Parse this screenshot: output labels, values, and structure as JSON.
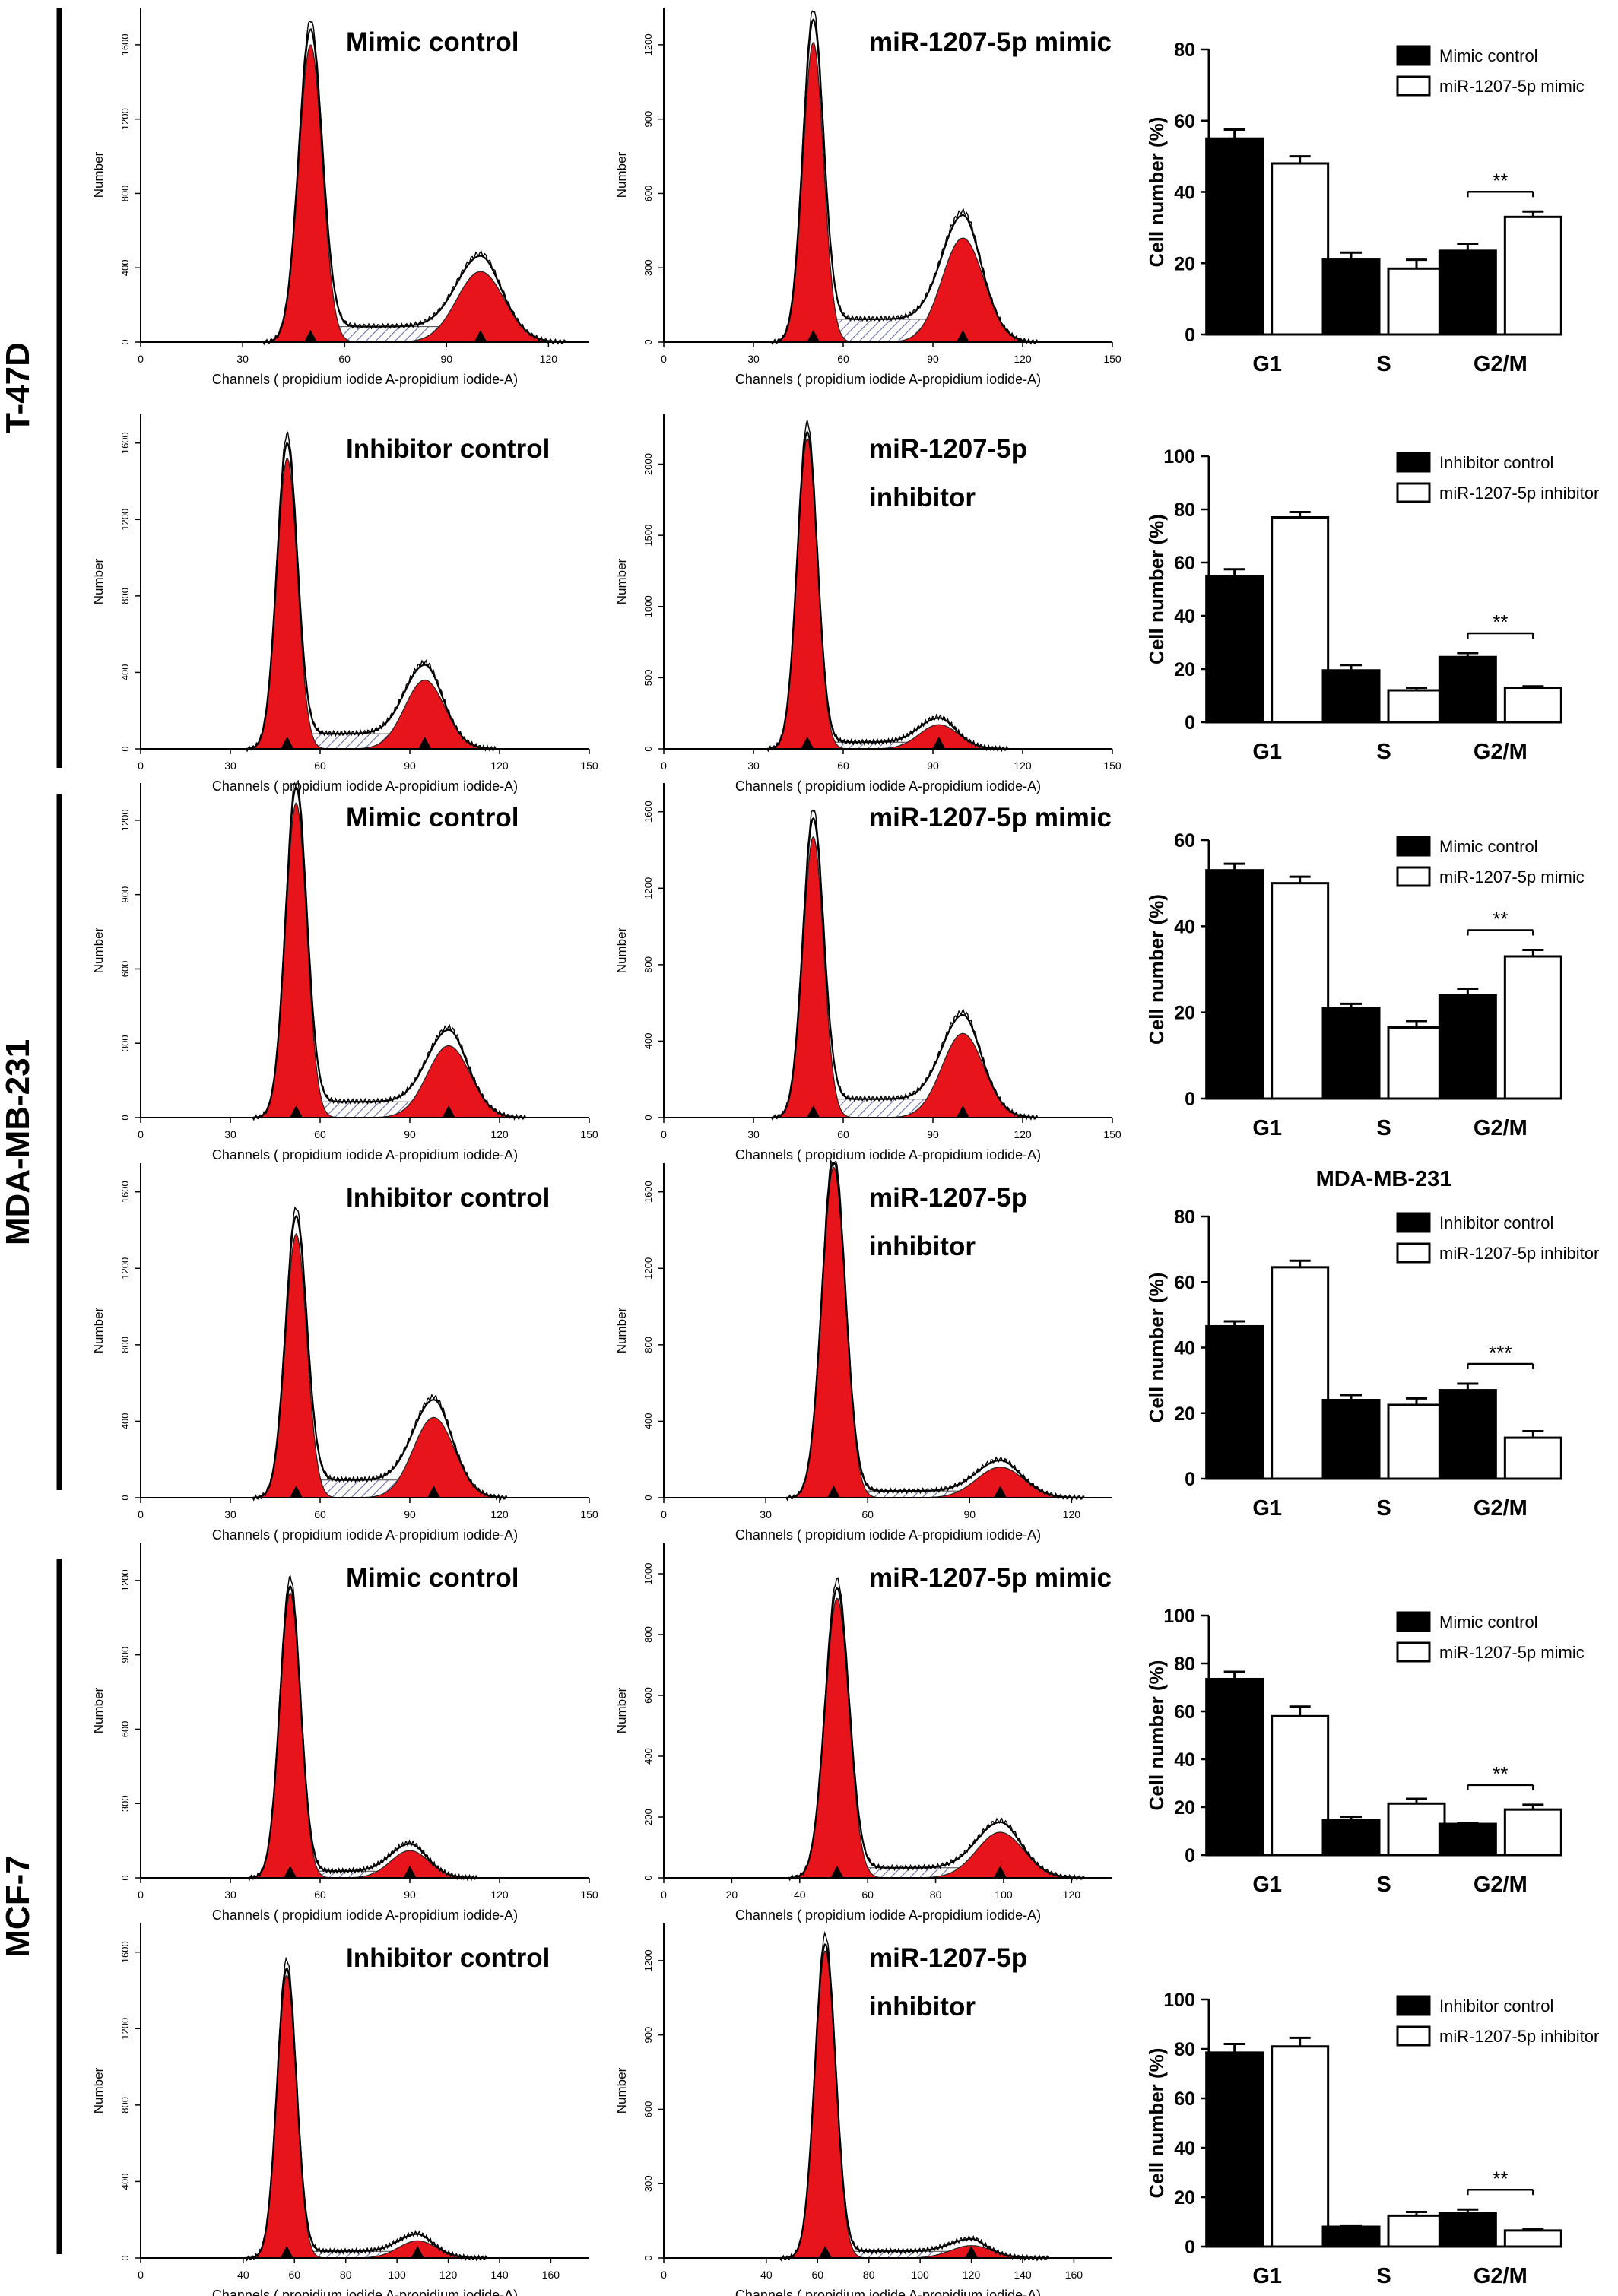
{
  "figure": {
    "cell_lines": [
      "T-47D",
      "MDA-MB-231",
      "MCF-7"
    ]
  },
  "histogram_text": {
    "ylabel": "Number",
    "xlabel": "Channels ( propidium iodide A-propidium iodide-A)"
  },
  "colors": {
    "peak_fill": "#e8141b",
    "hatch": "#6c6ca8",
    "control_bar": "#000000",
    "treatment_bar": "#ffffff"
  },
  "chart_data": [
    {
      "type": "area",
      "cell_line": "T-47D",
      "title": "Mimic control",
      "xticks": [
        0,
        30,
        60,
        90,
        120
      ],
      "xlim": [
        0,
        132
      ],
      "yticks": [
        0,
        400,
        800,
        1200,
        1600
      ],
      "ylim": [
        0,
        1800
      ],
      "g1_channel": 50,
      "g2_channel": 100,
      "g1_height": 1600,
      "g2_height": 380
    },
    {
      "type": "area",
      "cell_line": "T-47D",
      "title": "miR-1207-5p mimic",
      "xticks": [
        0,
        30,
        60,
        90,
        120,
        150
      ],
      "xlim": [
        0,
        150
      ],
      "yticks": [
        0,
        300,
        600,
        900,
        1200
      ],
      "ylim": [
        0,
        1350
      ],
      "g1_channel": 50,
      "g2_channel": 100,
      "g1_height": 1210,
      "g2_height": 420
    },
    {
      "type": "area",
      "cell_line": "T-47D",
      "title": "Inhibitor control",
      "xticks": [
        0,
        30,
        60,
        90,
        120,
        150
      ],
      "xlim": [
        0,
        150
      ],
      "yticks": [
        0,
        400,
        800,
        1200,
        1600
      ],
      "ylim": [
        0,
        1750
      ],
      "g1_channel": 49,
      "g2_channel": 95,
      "g1_height": 1520,
      "g2_height": 360
    },
    {
      "type": "area",
      "cell_line": "T-47D",
      "title": "miR-1207-5p inhibitor",
      "xticks": [
        0,
        30,
        60,
        90,
        120,
        150
      ],
      "xlim": [
        0,
        150
      ],
      "yticks": [
        0,
        500,
        1000,
        1500,
        2000
      ],
      "ylim": [
        0,
        2350
      ],
      "g1_channel": 48,
      "g2_channel": 92,
      "g1_height": 2180,
      "g2_height": 170
    },
    {
      "type": "area",
      "cell_line": "MDA-MB-231",
      "title": "Mimic control",
      "xticks": [
        0,
        30,
        60,
        90,
        120,
        150
      ],
      "xlim": [
        0,
        150
      ],
      "yticks": [
        0,
        300,
        600,
        900,
        1200
      ],
      "ylim": [
        0,
        1350
      ],
      "g1_channel": 52,
      "g2_channel": 103,
      "g1_height": 1270,
      "g2_height": 290
    },
    {
      "type": "area",
      "cell_line": "MDA-MB-231",
      "title": "miR-1207-5p mimic",
      "xticks": [
        0,
        30,
        60,
        90,
        120,
        150
      ],
      "xlim": [
        0,
        150
      ],
      "yticks": [
        0,
        400,
        800,
        1200,
        1600
      ],
      "ylim": [
        0,
        1750
      ],
      "g1_channel": 50,
      "g2_channel": 100,
      "g1_height": 1470,
      "g2_height": 440
    },
    {
      "type": "area",
      "cell_line": "MDA-MB-231",
      "title": "Inhibitor control",
      "xticks": [
        0,
        30,
        60,
        90,
        120,
        150
      ],
      "xlim": [
        0,
        150
      ],
      "yticks": [
        0,
        400,
        800,
        1200,
        1600
      ],
      "ylim": [
        0,
        1750
      ],
      "g1_channel": 52,
      "g2_channel": 98,
      "g1_height": 1380,
      "g2_height": 420
    },
    {
      "type": "area",
      "cell_line": "MDA-MB-231",
      "title": "miR-1207-5p inhibitor",
      "xticks": [
        0,
        30,
        60,
        90,
        120
      ],
      "xlim": [
        0,
        132
      ],
      "yticks": [
        0,
        400,
        800,
        1200,
        1600
      ],
      "ylim": [
        0,
        1750
      ],
      "g1_channel": 50,
      "g2_channel": 99,
      "g1_height": 1730,
      "g2_height": 160
    },
    {
      "type": "area",
      "cell_line": "MCF-7",
      "title": "Mimic control",
      "xticks": [
        0,
        30,
        60,
        90,
        120,
        150
      ],
      "xlim": [
        0,
        150
      ],
      "yticks": [
        0,
        300,
        600,
        900,
        1200
      ],
      "ylim": [
        0,
        1350
      ],
      "g1_channel": 50,
      "g2_channel": 90,
      "g1_height": 1150,
      "g2_height": 110
    },
    {
      "type": "area",
      "cell_line": "MCF-7",
      "title": "miR-1207-5p mimic",
      "xticks": [
        0,
        20,
        40,
        60,
        80,
        100,
        120
      ],
      "xlim": [
        0,
        132
      ],
      "yticks": [
        0,
        200,
        400,
        600,
        800,
        1000
      ],
      "ylim": [
        0,
        1100
      ],
      "g1_channel": 51,
      "g2_channel": 99,
      "g1_height": 920,
      "g2_height": 150
    },
    {
      "type": "area",
      "cell_line": "MCF-7",
      "title": "Inhibitor control",
      "xticks": [
        0,
        40,
        60,
        80,
        100,
        120,
        140,
        160
      ],
      "xlim": [
        0,
        175
      ],
      "yticks": [
        0,
        400,
        800,
        1200,
        1600
      ],
      "ylim": [
        0,
        1750
      ],
      "g1_channel": 57,
      "g2_channel": 108,
      "g1_height": 1480,
      "g2_height": 90
    },
    {
      "type": "area",
      "cell_line": "MCF-7",
      "title": "miR-1207-5p inhibitor",
      "xticks": [
        0,
        40,
        60,
        80,
        100,
        120,
        140,
        160
      ],
      "xlim": [
        0,
        175
      ],
      "yticks": [
        0,
        300,
        600,
        900,
        1200
      ],
      "ylim": [
        0,
        1350
      ],
      "g1_channel": 63,
      "g2_channel": 120,
      "g1_height": 1240,
      "g2_height": 50
    },
    {
      "type": "bar",
      "cell_line": "T-47D",
      "categories": [
        "G1",
        "S",
        "G2/M"
      ],
      "ylabel": "Cell number (%)",
      "ylim": [
        0,
        80
      ],
      "yticks": [
        0,
        20,
        40,
        60,
        80
      ],
      "series": [
        {
          "name": "Mimic control",
          "values": [
            55,
            21,
            23.5
          ],
          "errors": [
            2.5,
            2,
            2
          ]
        },
        {
          "name": "miR-1207-5p mimic",
          "values": [
            48,
            18.5,
            33
          ],
          "errors": [
            2,
            2.5,
            1.5
          ]
        }
      ],
      "significance": {
        "category": "G2/M",
        "label": "**"
      }
    },
    {
      "type": "bar",
      "cell_line": "T-47D",
      "categories": [
        "G1",
        "S",
        "G2/M"
      ],
      "ylabel": "Cell number (%)",
      "ylim": [
        0,
        100
      ],
      "yticks": [
        0,
        20,
        40,
        60,
        80,
        100
      ],
      "series": [
        {
          "name": "Inhibitor control",
          "values": [
            55,
            19.5,
            24.5
          ],
          "errors": [
            2.5,
            2,
            1.5
          ]
        },
        {
          "name": "miR-1207-5p inhibitor",
          "values": [
            77,
            12,
            13
          ],
          "errors": [
            2,
            1,
            0.5
          ]
        }
      ],
      "significance": {
        "category": "G2/M",
        "label": "**"
      }
    },
    {
      "type": "bar",
      "cell_line": "MDA-MB-231",
      "categories": [
        "G1",
        "S",
        "G2/M"
      ],
      "ylabel": "Cell number (%)",
      "ylim": [
        0,
        60
      ],
      "yticks": [
        0,
        20,
        40,
        60
      ],
      "series": [
        {
          "name": "Mimic control",
          "values": [
            53,
            21,
            24
          ],
          "errors": [
            1.5,
            1,
            1.5
          ]
        },
        {
          "name": "miR-1207-5p mimic",
          "values": [
            50,
            16.5,
            33
          ],
          "errors": [
            1.5,
            1.5,
            1.5
          ]
        }
      ],
      "significance": {
        "category": "G2/M",
        "label": "**"
      }
    },
    {
      "type": "bar",
      "cell_line": "MDA-MB-231",
      "title": "MDA-MB-231",
      "categories": [
        "G1",
        "S",
        "G2/M"
      ],
      "ylabel": "Cell number (%)",
      "ylim": [
        0,
        80
      ],
      "yticks": [
        0,
        20,
        40,
        60,
        80
      ],
      "series": [
        {
          "name": "Inhibitor control",
          "values": [
            46.5,
            24,
            27
          ],
          "errors": [
            1.5,
            1.5,
            2
          ]
        },
        {
          "name": "miR-1207-5p inhibitor",
          "values": [
            64.5,
            22.5,
            12.5
          ],
          "errors": [
            2,
            2,
            2
          ]
        }
      ],
      "significance": {
        "category": "G2/M",
        "label": "***"
      }
    },
    {
      "type": "bar",
      "cell_line": "MCF-7",
      "categories": [
        "G1",
        "S",
        "G2/M"
      ],
      "ylabel": "Cell number (%)",
      "ylim": [
        0,
        100
      ],
      "yticks": [
        0,
        20,
        40,
        60,
        80,
        100
      ],
      "series": [
        {
          "name": "Mimic control",
          "values": [
            73.5,
            14.5,
            13
          ],
          "errors": [
            3,
            1.5,
            0.5
          ]
        },
        {
          "name": "miR-1207-5p mimic",
          "values": [
            58,
            21.5,
            19
          ],
          "errors": [
            4,
            2,
            2
          ]
        }
      ],
      "significance": {
        "category": "G2/M",
        "label": "**"
      }
    },
    {
      "type": "bar",
      "cell_line": "MCF-7",
      "categories": [
        "G1",
        "S",
        "G2/M"
      ],
      "ylabel": "Cell number (%)",
      "ylim": [
        0,
        100
      ],
      "yticks": [
        0,
        20,
        40,
        60,
        80,
        100
      ],
      "series": [
        {
          "name": "Inhibitor control",
          "values": [
            78.5,
            8,
            13.5
          ],
          "errors": [
            3.5,
            0.5,
            1.5
          ]
        },
        {
          "name": "miR-1207-5p inhibitor",
          "values": [
            81,
            12.5,
            6.5
          ],
          "errors": [
            3.5,
            1.5,
            0.5
          ]
        }
      ],
      "significance": {
        "category": "G2/M",
        "label": "**"
      }
    }
  ]
}
